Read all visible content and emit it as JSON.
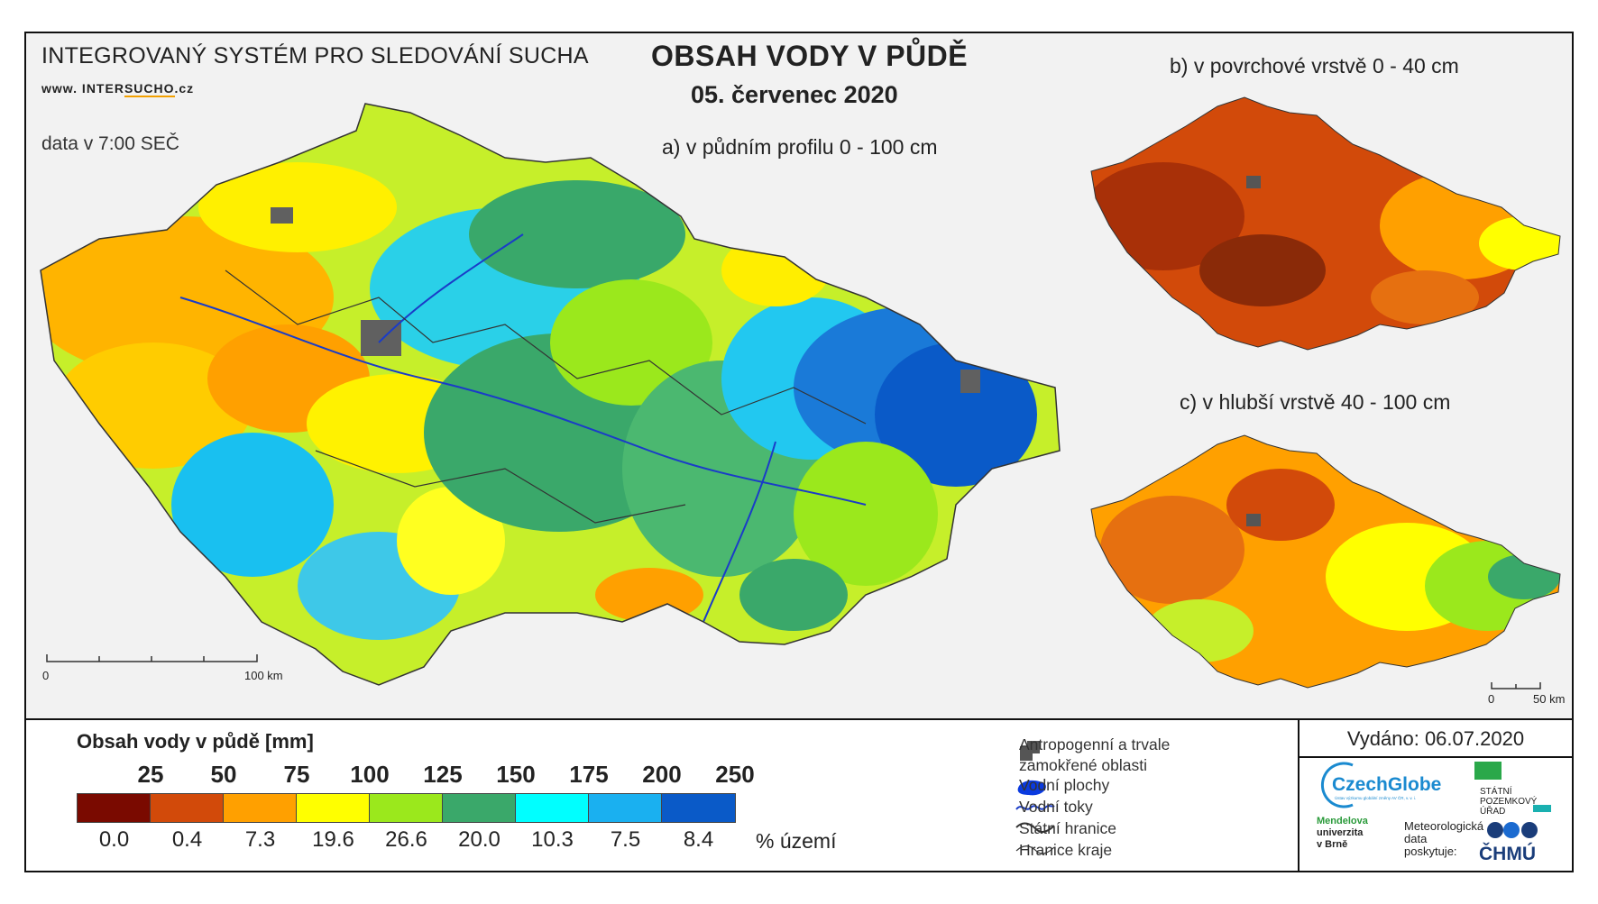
{
  "header": {
    "system_name": "INTEGROVANÝ SYSTÉM PRO SLEDOVÁNÍ SUCHA",
    "website_prefix": "www. INTER",
    "website_highlight": "SUCHO",
    "website_suffix": ".cz",
    "data_time": "data v 7:00 SEČ",
    "title": "OBSAH VODY V PŮDĚ",
    "date": "05. červenec 2020"
  },
  "maps": {
    "main": {
      "caption": "a) v půdním profilu 0 - 100 cm",
      "scale_start": "0",
      "scale_end": "100 km"
    },
    "surface": {
      "caption": "b) v povrchové vrstvě 0 - 40 cm"
    },
    "deep": {
      "caption": "c) v hlubší vrstvě 40 - 100 cm",
      "scale_start": "0",
      "scale_end": "50 km"
    }
  },
  "legend": {
    "title": "Obsah vody v půdě  [mm]",
    "thresholds": [
      "25",
      "50",
      "75",
      "100",
      "125",
      "150",
      "175",
      "200",
      "250"
    ],
    "colors": [
      "#7a0a00",
      "#d24a0a",
      "#ffa000",
      "#ffff00",
      "#9be81c",
      "#3aa86a",
      "#00ffff",
      "#1ab0f0",
      "#0a5ac8"
    ],
    "percentages": [
      "0.0",
      "0.4",
      "7.3",
      "19.6",
      "26.6",
      "20.0",
      "10.3",
      "7.5",
      "8.4"
    ],
    "percent_unit": "% území"
  },
  "symbols": {
    "anthropogenic": "Antropogenní a trvale zamokřené oblasti",
    "water_bodies": "Vodní plochy",
    "rivers": "Vodní toky",
    "state_border": "Státní hranice",
    "region_border": "Hranice kraje"
  },
  "issued": {
    "label": "Vydáno: 06.07.2020",
    "logo_czechglobe": "CzechGlobe",
    "logo_czechglobe_sub": "Ústav výzkumu globální změny AV ČR, v. v. i.",
    "logo_spu": [
      "STÁTNÍ",
      "POZEMKOVÝ",
      "ÚŘAD"
    ],
    "logo_mendel": [
      "Mendelova",
      "univerzita",
      "v Brně"
    ],
    "meteo": [
      "Meteorologická",
      "data",
      "poskytuje:"
    ],
    "logo_chmu": "ČHMÚ"
  }
}
